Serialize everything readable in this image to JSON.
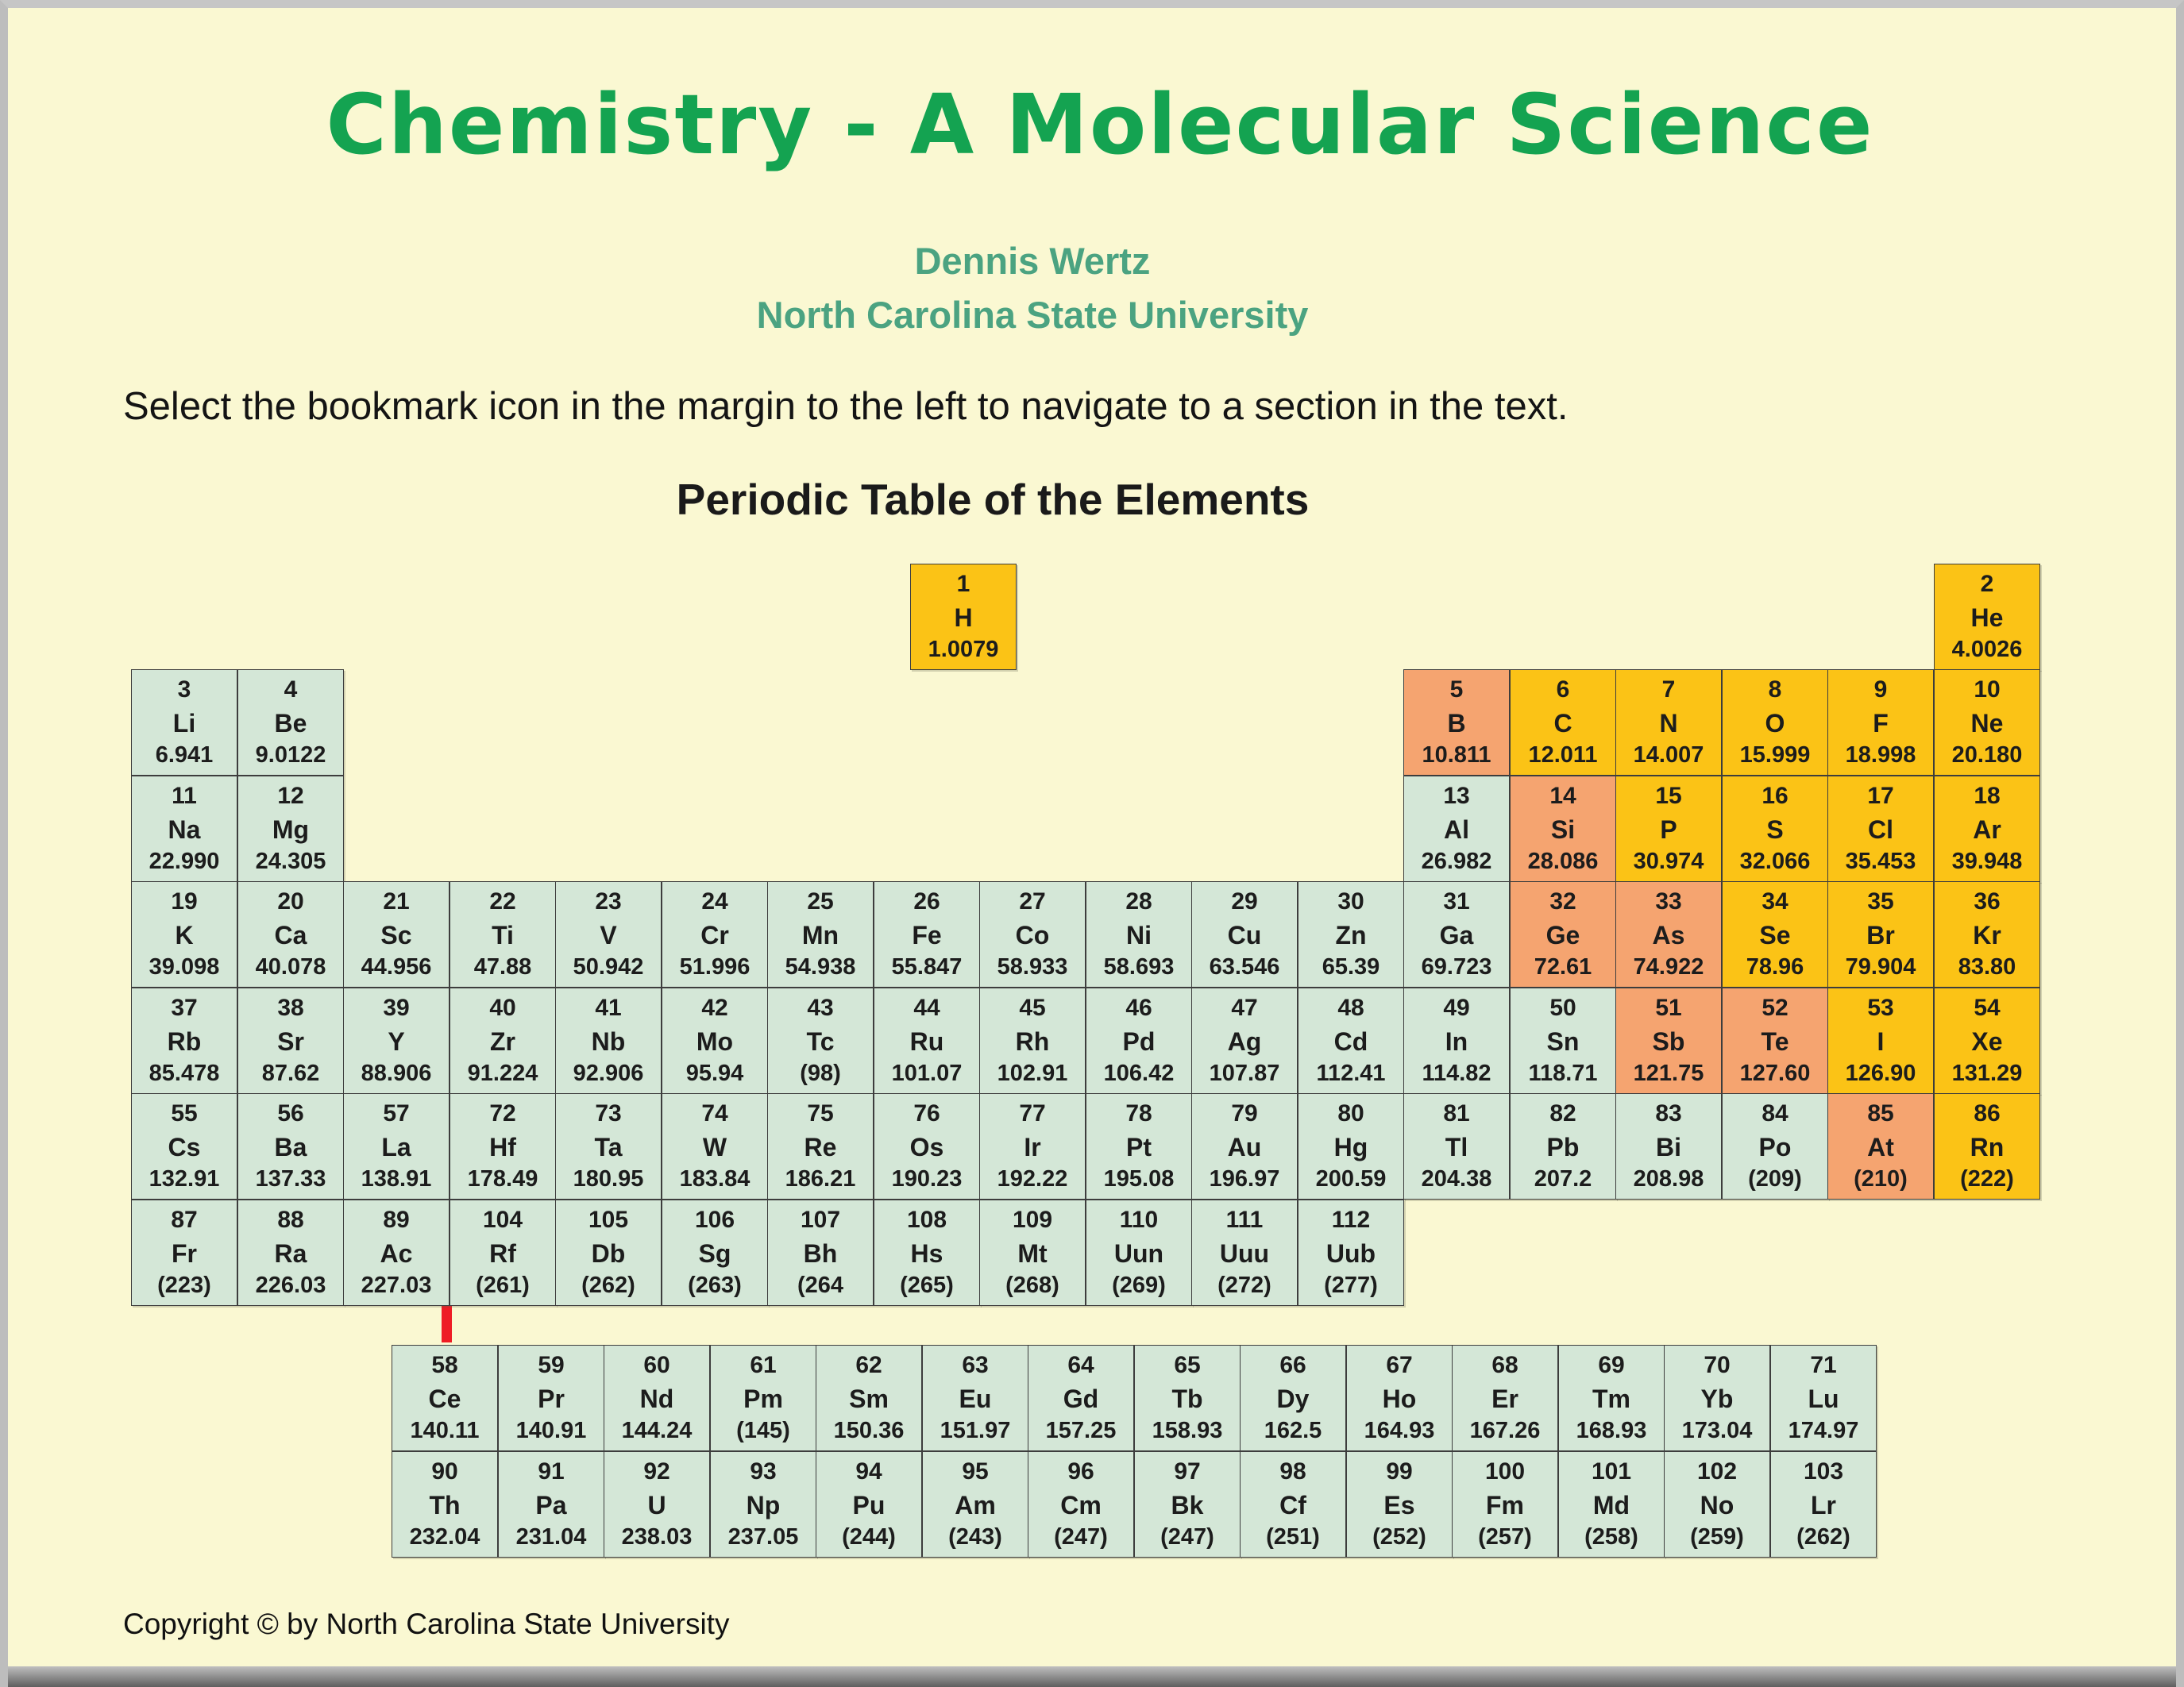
{
  "page": {
    "title": "Chemistry - A Molecular Science",
    "author": "Dennis Wertz",
    "institution": "North Carolina State University",
    "instruction": "Select the bookmark icon in the margin to the left to navigate to a section in the text.",
    "table_title": "Periodic Table of the Elements",
    "copyright": "Copyright © by North Carolina State University"
  },
  "colors": {
    "background": "#FAF8D2",
    "title_green": "#14A351",
    "author_teal": "#4BA381",
    "metal_green": "#D4E7D7",
    "nonmetal_gold": "#FBC316",
    "metalloid_salmon": "#F5A470",
    "red_line": "#EE1C25",
    "cell_border": "#3D3D3D",
    "text_dark": "#1C1C1C"
  },
  "legend": {
    "metal": "green cells",
    "nonmetal": "gold cells",
    "metalloid": "salmon cells"
  },
  "periodic_table": {
    "elements": [
      {
        "n": 1,
        "s": "H",
        "m": "1.0079",
        "c": "nonmetal",
        "row": 1,
        "col": 1
      },
      {
        "n": 2,
        "s": "He",
        "m": "4.0026",
        "c": "nonmetal",
        "row": 1,
        "col": 18
      },
      {
        "n": 3,
        "s": "Li",
        "m": "6.941",
        "c": "metal",
        "row": 2,
        "col": 1
      },
      {
        "n": 4,
        "s": "Be",
        "m": "9.0122",
        "c": "metal",
        "row": 2,
        "col": 2
      },
      {
        "n": 5,
        "s": "B",
        "m": "10.811",
        "c": "metalloid",
        "row": 2,
        "col": 13
      },
      {
        "n": 6,
        "s": "C",
        "m": "12.011",
        "c": "nonmetal",
        "row": 2,
        "col": 14
      },
      {
        "n": 7,
        "s": "N",
        "m": "14.007",
        "c": "nonmetal",
        "row": 2,
        "col": 15
      },
      {
        "n": 8,
        "s": "O",
        "m": "15.999",
        "c": "nonmetal",
        "row": 2,
        "col": 16
      },
      {
        "n": 9,
        "s": "F",
        "m": "18.998",
        "c": "nonmetal",
        "row": 2,
        "col": 17
      },
      {
        "n": 10,
        "s": "Ne",
        "m": "20.180",
        "c": "nonmetal",
        "row": 2,
        "col": 18
      },
      {
        "n": 11,
        "s": "Na",
        "m": "22.990",
        "c": "metal",
        "row": 3,
        "col": 1
      },
      {
        "n": 12,
        "s": "Mg",
        "m": "24.305",
        "c": "metal",
        "row": 3,
        "col": 2
      },
      {
        "n": 13,
        "s": "Al",
        "m": "26.982",
        "c": "metal",
        "row": 3,
        "col": 13
      },
      {
        "n": 14,
        "s": "Si",
        "m": "28.086",
        "c": "metalloid",
        "row": 3,
        "col": 14
      },
      {
        "n": 15,
        "s": "P",
        "m": "30.974",
        "c": "nonmetal",
        "row": 3,
        "col": 15
      },
      {
        "n": 16,
        "s": "S",
        "m": "32.066",
        "c": "nonmetal",
        "row": 3,
        "col": 16
      },
      {
        "n": 17,
        "s": "Cl",
        "m": "35.453",
        "c": "nonmetal",
        "row": 3,
        "col": 17
      },
      {
        "n": 18,
        "s": "Ar",
        "m": "39.948",
        "c": "nonmetal",
        "row": 3,
        "col": 18
      },
      {
        "n": 19,
        "s": "K",
        "m": "39.098",
        "c": "metal",
        "row": 4,
        "col": 1
      },
      {
        "n": 20,
        "s": "Ca",
        "m": "40.078",
        "c": "metal",
        "row": 4,
        "col": 2
      },
      {
        "n": 21,
        "s": "Sc",
        "m": "44.956",
        "c": "metal",
        "row": 4,
        "col": 3
      },
      {
        "n": 22,
        "s": "Ti",
        "m": "47.88",
        "c": "metal",
        "row": 4,
        "col": 4
      },
      {
        "n": 23,
        "s": "V",
        "m": "50.942",
        "c": "metal",
        "row": 4,
        "col": 5
      },
      {
        "n": 24,
        "s": "Cr",
        "m": "51.996",
        "c": "metal",
        "row": 4,
        "col": 6
      },
      {
        "n": 25,
        "s": "Mn",
        "m": "54.938",
        "c": "metal",
        "row": 4,
        "col": 7
      },
      {
        "n": 26,
        "s": "Fe",
        "m": "55.847",
        "c": "metal",
        "row": 4,
        "col": 8
      },
      {
        "n": 27,
        "s": "Co",
        "m": "58.933",
        "c": "metal",
        "row": 4,
        "col": 9
      },
      {
        "n": 28,
        "s": "Ni",
        "m": "58.693",
        "c": "metal",
        "row": 4,
        "col": 10
      },
      {
        "n": 29,
        "s": "Cu",
        "m": "63.546",
        "c": "metal",
        "row": 4,
        "col": 11
      },
      {
        "n": 30,
        "s": "Zn",
        "m": "65.39",
        "c": "metal",
        "row": 4,
        "col": 12
      },
      {
        "n": 31,
        "s": "Ga",
        "m": "69.723",
        "c": "metal",
        "row": 4,
        "col": 13
      },
      {
        "n": 32,
        "s": "Ge",
        "m": "72.61",
        "c": "metalloid",
        "row": 4,
        "col": 14
      },
      {
        "n": 33,
        "s": "As",
        "m": "74.922",
        "c": "metalloid",
        "row": 4,
        "col": 15
      },
      {
        "n": 34,
        "s": "Se",
        "m": "78.96",
        "c": "nonmetal",
        "row": 4,
        "col": 16
      },
      {
        "n": 35,
        "s": "Br",
        "m": "79.904",
        "c": "nonmetal",
        "row": 4,
        "col": 17
      },
      {
        "n": 36,
        "s": "Kr",
        "m": "83.80",
        "c": "nonmetal",
        "row": 4,
        "col": 18
      },
      {
        "n": 37,
        "s": "Rb",
        "m": "85.478",
        "c": "metal",
        "row": 5,
        "col": 1
      },
      {
        "n": 38,
        "s": "Sr",
        "m": "87.62",
        "c": "metal",
        "row": 5,
        "col": 2
      },
      {
        "n": 39,
        "s": "Y",
        "m": "88.906",
        "c": "metal",
        "row": 5,
        "col": 3
      },
      {
        "n": 40,
        "s": "Zr",
        "m": "91.224",
        "c": "metal",
        "row": 5,
        "col": 4
      },
      {
        "n": 41,
        "s": "Nb",
        "m": "92.906",
        "c": "metal",
        "row": 5,
        "col": 5
      },
      {
        "n": 42,
        "s": "Mo",
        "m": "95.94",
        "c": "metal",
        "row": 5,
        "col": 6
      },
      {
        "n": 43,
        "s": "Tc",
        "m": "(98)",
        "c": "metal",
        "row": 5,
        "col": 7
      },
      {
        "n": 44,
        "s": "Ru",
        "m": "101.07",
        "c": "metal",
        "row": 5,
        "col": 8
      },
      {
        "n": 45,
        "s": "Rh",
        "m": "102.91",
        "c": "metal",
        "row": 5,
        "col": 9
      },
      {
        "n": 46,
        "s": "Pd",
        "m": "106.42",
        "c": "metal",
        "row": 5,
        "col": 10
      },
      {
        "n": 47,
        "s": "Ag",
        "m": "107.87",
        "c": "metal",
        "row": 5,
        "col": 11
      },
      {
        "n": 48,
        "s": "Cd",
        "m": "112.41",
        "c": "metal",
        "row": 5,
        "col": 12
      },
      {
        "n": 49,
        "s": "In",
        "m": "114.82",
        "c": "metal",
        "row": 5,
        "col": 13
      },
      {
        "n": 50,
        "s": "Sn",
        "m": "118.71",
        "c": "metal",
        "row": 5,
        "col": 14
      },
      {
        "n": 51,
        "s": "Sb",
        "m": "121.75",
        "c": "metalloid",
        "row": 5,
        "col": 15
      },
      {
        "n": 52,
        "s": "Te",
        "m": "127.60",
        "c": "metalloid",
        "row": 5,
        "col": 16
      },
      {
        "n": 53,
        "s": "I",
        "m": "126.90",
        "c": "nonmetal",
        "row": 5,
        "col": 17
      },
      {
        "n": 54,
        "s": "Xe",
        "m": "131.29",
        "c": "nonmetal",
        "row": 5,
        "col": 18
      },
      {
        "n": 55,
        "s": "Cs",
        "m": "132.91",
        "c": "metal",
        "row": 6,
        "col": 1
      },
      {
        "n": 56,
        "s": "Ba",
        "m": "137.33",
        "c": "metal",
        "row": 6,
        "col": 2
      },
      {
        "n": 57,
        "s": "La",
        "m": "138.91",
        "c": "metal",
        "row": 6,
        "col": 3
      },
      {
        "n": 72,
        "s": "Hf",
        "m": "178.49",
        "c": "metal",
        "row": 6,
        "col": 4
      },
      {
        "n": 73,
        "s": "Ta",
        "m": "180.95",
        "c": "metal",
        "row": 6,
        "col": 5
      },
      {
        "n": 74,
        "s": "W",
        "m": "183.84",
        "c": "metal",
        "row": 6,
        "col": 6
      },
      {
        "n": 75,
        "s": "Re",
        "m": "186.21",
        "c": "metal",
        "row": 6,
        "col": 7
      },
      {
        "n": 76,
        "s": "Os",
        "m": "190.23",
        "c": "metal",
        "row": 6,
        "col": 8
      },
      {
        "n": 77,
        "s": "Ir",
        "m": "192.22",
        "c": "metal",
        "row": 6,
        "col": 9
      },
      {
        "n": 78,
        "s": "Pt",
        "m": "195.08",
        "c": "metal",
        "row": 6,
        "col": 10
      },
      {
        "n": 79,
        "s": "Au",
        "m": "196.97",
        "c": "metal",
        "row": 6,
        "col": 11
      },
      {
        "n": 80,
        "s": "Hg",
        "m": "200.59",
        "c": "metal",
        "row": 6,
        "col": 12
      },
      {
        "n": 81,
        "s": "Tl",
        "m": "204.38",
        "c": "metal",
        "row": 6,
        "col": 13
      },
      {
        "n": 82,
        "s": "Pb",
        "m": "207.2",
        "c": "metal",
        "row": 6,
        "col": 14
      },
      {
        "n": 83,
        "s": "Bi",
        "m": "208.98",
        "c": "metal",
        "row": 6,
        "col": 15
      },
      {
        "n": 84,
        "s": "Po",
        "m": "(209)",
        "c": "metal",
        "row": 6,
        "col": 16
      },
      {
        "n": 85,
        "s": "At",
        "m": "(210)",
        "c": "metalloid",
        "row": 6,
        "col": 17
      },
      {
        "n": 86,
        "s": "Rn",
        "m": "(222)",
        "c": "nonmetal",
        "row": 6,
        "col": 18
      },
      {
        "n": 87,
        "s": "Fr",
        "m": "(223)",
        "c": "metal",
        "row": 7,
        "col": 1
      },
      {
        "n": 88,
        "s": "Ra",
        "m": "226.03",
        "c": "metal",
        "row": 7,
        "col": 2
      },
      {
        "n": 89,
        "s": "Ac",
        "m": "227.03",
        "c": "metal",
        "row": 7,
        "col": 3
      },
      {
        "n": 104,
        "s": "Rf",
        "m": "(261)",
        "c": "metal",
        "row": 7,
        "col": 4
      },
      {
        "n": 105,
        "s": "Db",
        "m": "(262)",
        "c": "metal",
        "row": 7,
        "col": 5
      },
      {
        "n": 106,
        "s": "Sg",
        "m": "(263)",
        "c": "metal",
        "row": 7,
        "col": 6
      },
      {
        "n": 107,
        "s": "Bh",
        "m": "(264",
        "c": "metal",
        "row": 7,
        "col": 7
      },
      {
        "n": 108,
        "s": "Hs",
        "m": "(265)",
        "c": "metal",
        "row": 7,
        "col": 8
      },
      {
        "n": 109,
        "s": "Mt",
        "m": "(268)",
        "c": "metal",
        "row": 7,
        "col": 9
      },
      {
        "n": 110,
        "s": "Uun",
        "m": "(269)",
        "c": "metal",
        "row": 7,
        "col": 10
      },
      {
        "n": 111,
        "s": "Uuu",
        "m": "(272)",
        "c": "metal",
        "row": 7,
        "col": 11
      },
      {
        "n": 112,
        "s": "Uub",
        "m": "(277)",
        "c": "metal",
        "row": 7,
        "col": 12
      }
    ],
    "lanthanides": [
      {
        "n": 58,
        "s": "Ce",
        "m": "140.11",
        "c": "metal"
      },
      {
        "n": 59,
        "s": "Pr",
        "m": "140.91",
        "c": "metal"
      },
      {
        "n": 60,
        "s": "Nd",
        "m": "144.24",
        "c": "metal"
      },
      {
        "n": 61,
        "s": "Pm",
        "m": "(145)",
        "c": "metal"
      },
      {
        "n": 62,
        "s": "Sm",
        "m": "150.36",
        "c": "metal"
      },
      {
        "n": 63,
        "s": "Eu",
        "m": "151.97",
        "c": "metal"
      },
      {
        "n": 64,
        "s": "Gd",
        "m": "157.25",
        "c": "metal"
      },
      {
        "n": 65,
        "s": "Tb",
        "m": "158.93",
        "c": "metal"
      },
      {
        "n": 66,
        "s": "Dy",
        "m": "162.5",
        "c": "metal"
      },
      {
        "n": 67,
        "s": "Ho",
        "m": "164.93",
        "c": "metal"
      },
      {
        "n": 68,
        "s": "Er",
        "m": "167.26",
        "c": "metal"
      },
      {
        "n": 69,
        "s": "Tm",
        "m": "168.93",
        "c": "metal"
      },
      {
        "n": 70,
        "s": "Yb",
        "m": "173.04",
        "c": "metal"
      },
      {
        "n": 71,
        "s": "Lu",
        "m": "174.97",
        "c": "metal"
      }
    ],
    "actinides": [
      {
        "n": 90,
        "s": "Th",
        "m": "232.04",
        "c": "metal"
      },
      {
        "n": 91,
        "s": "Pa",
        "m": "231.04",
        "c": "metal"
      },
      {
        "n": 92,
        "s": "U",
        "m": "238.03",
        "c": "metal"
      },
      {
        "n": 93,
        "s": "Np",
        "m": "237.05",
        "c": "metal"
      },
      {
        "n": 94,
        "s": "Pu",
        "m": "(244)",
        "c": "metal"
      },
      {
        "n": 95,
        "s": "Am",
        "m": "(243)",
        "c": "metal"
      },
      {
        "n": 96,
        "s": "Cm",
        "m": "(247)",
        "c": "metal"
      },
      {
        "n": 97,
        "s": "Bk",
        "m": "(247)",
        "c": "metal"
      },
      {
        "n": 98,
        "s": "Cf",
        "m": "(251)",
        "c": "metal"
      },
      {
        "n": 99,
        "s": "Es",
        "m": "(252)",
        "c": "metal"
      },
      {
        "n": 100,
        "s": "Fm",
        "m": "(257)",
        "c": "metal"
      },
      {
        "n": 101,
        "s": "Md",
        "m": "(258)",
        "c": "metal"
      },
      {
        "n": 102,
        "s": "No",
        "m": "(259)",
        "c": "metal"
      },
      {
        "n": 103,
        "s": "Lr",
        "m": "(262)",
        "c": "metal"
      }
    ]
  }
}
